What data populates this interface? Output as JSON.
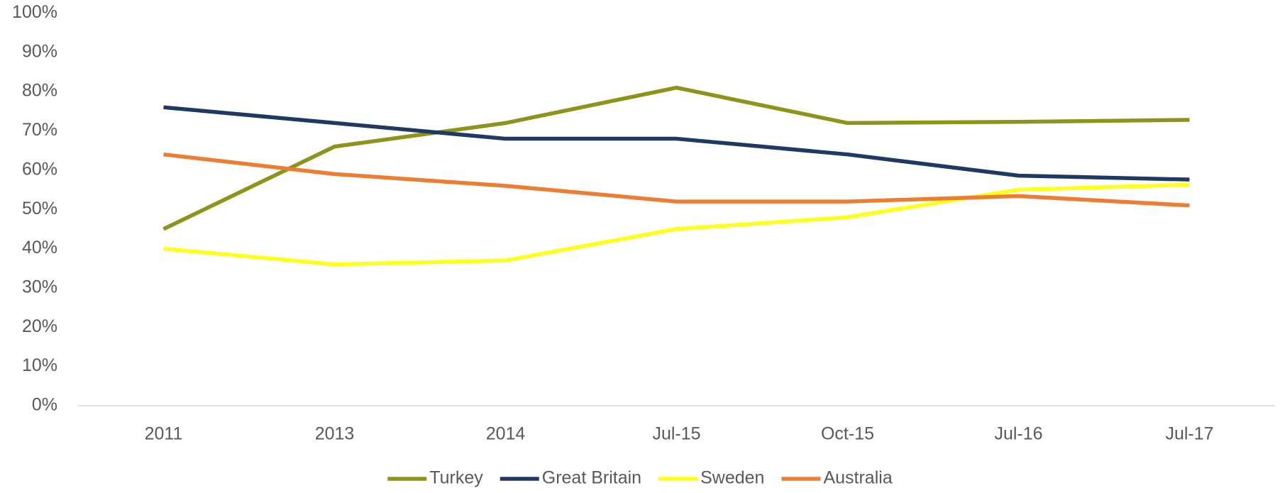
{
  "chart_data": {
    "type": "line",
    "categories": [
      "2011",
      "2013",
      "2014",
      "Jul-15",
      "Oct-15",
      "Jul-16",
      "Jul-17"
    ],
    "series": [
      {
        "name": "Turkey",
        "color": "#8c9419",
        "values": [
          45,
          66,
          72,
          81,
          72,
          72.3,
          72.8
        ]
      },
      {
        "name": "Great Britain",
        "color": "#1f3864",
        "values": [
          76,
          72,
          68,
          68,
          64,
          58.6,
          57.6
        ]
      },
      {
        "name": "Sweden",
        "color": "#ffff1a",
        "values": [
          40,
          36,
          37,
          45,
          48,
          55,
          56.3
        ]
      },
      {
        "name": "Australia",
        "color": "#ed7d31",
        "values": [
          64,
          59,
          56,
          52,
          52,
          53.4,
          51
        ]
      }
    ],
    "ylim": [
      0,
      100
    ],
    "yticks": [
      {
        "value": 0,
        "label": "0%"
      },
      {
        "value": 10,
        "label": "10%"
      },
      {
        "value": 20,
        "label": "20%"
      },
      {
        "value": 30,
        "label": "30%"
      },
      {
        "value": 40,
        "label": "40%"
      },
      {
        "value": 50,
        "label": "50%"
      },
      {
        "value": 60,
        "label": "60%"
      },
      {
        "value": 70,
        "label": "70%"
      },
      {
        "value": 80,
        "label": "80%"
      },
      {
        "value": 90,
        "label": "90%"
      },
      {
        "value": 100,
        "label": "100%"
      }
    ],
    "grid": false,
    "legend": "bottom"
  }
}
